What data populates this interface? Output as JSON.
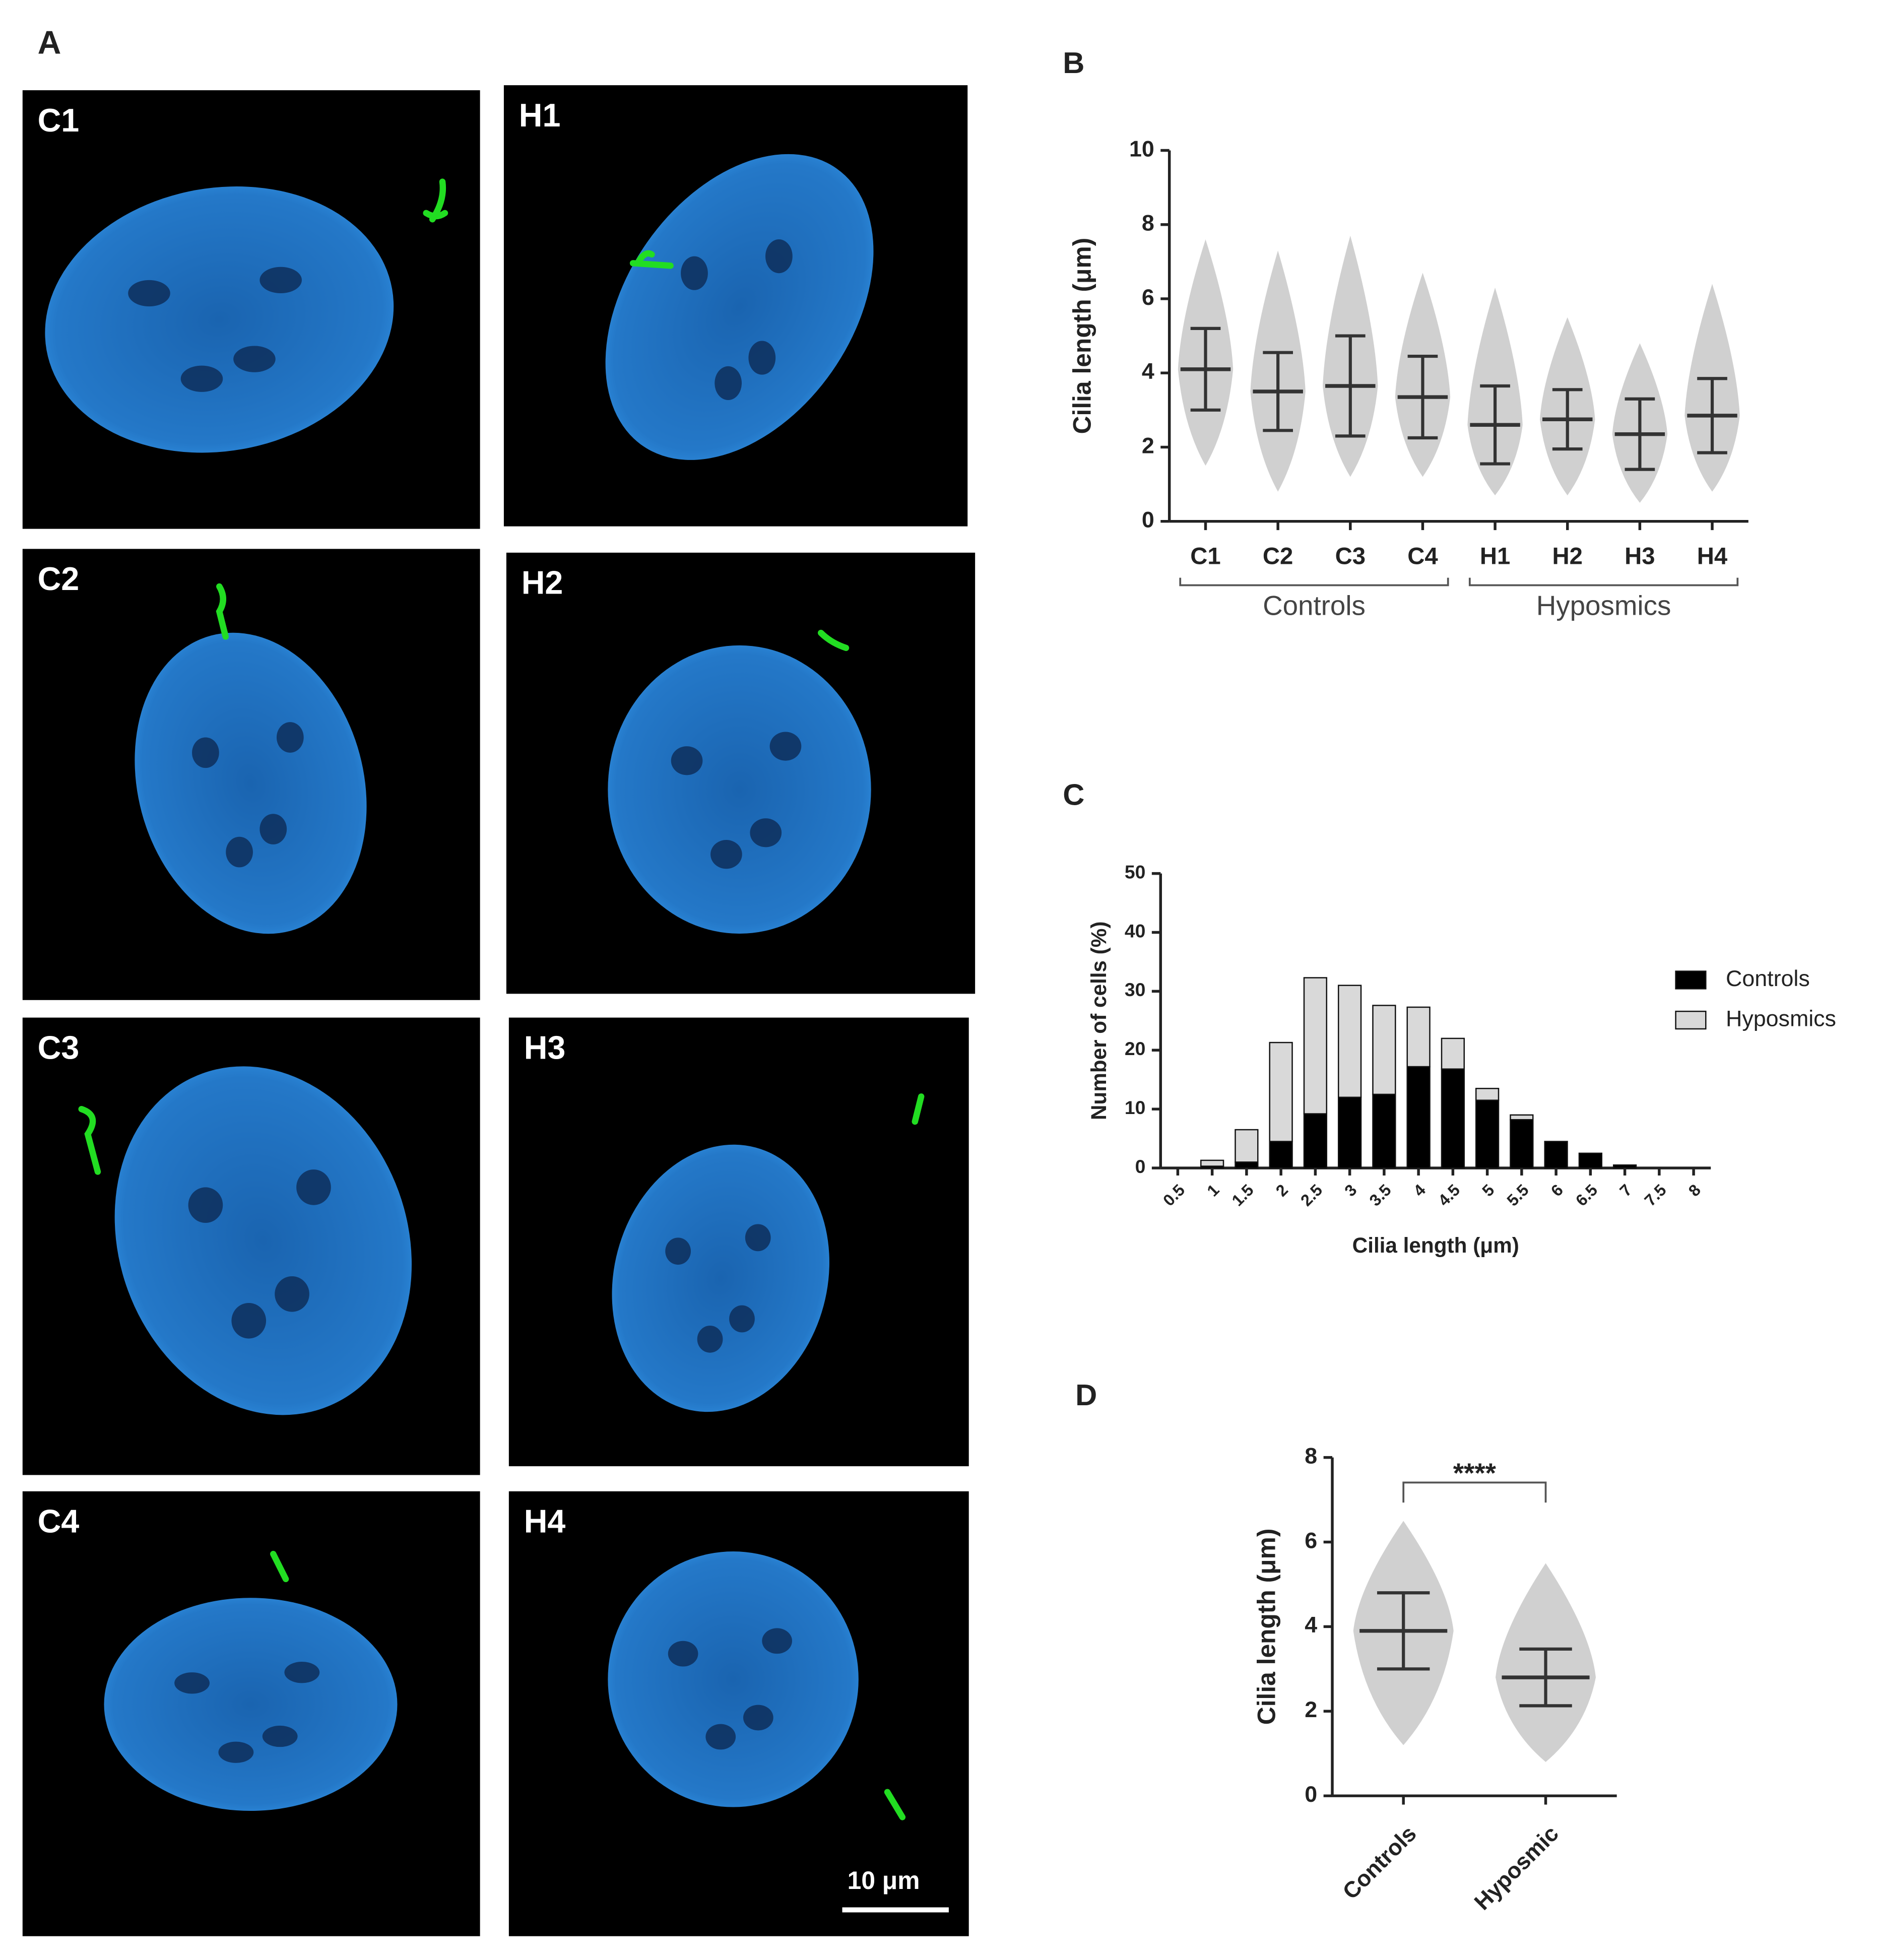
{
  "figure_a": {
    "panel": "A",
    "image_labels": [
      "C1",
      "H1",
      "C2",
      "H2",
      "C3",
      "H3",
      "C4",
      "H4"
    ],
    "scale_bar_label": "10 μm"
  },
  "chart_data": [
    {
      "type": "dot_plot",
      "panel": "B",
      "ylabel": "Cilia length (μm)",
      "categories": [
        "C1",
        "C2",
        "C3",
        "C4",
        "H1",
        "H2",
        "H3",
        "H4"
      ],
      "groups": [
        "Controls",
        "Hyposmics"
      ],
      "mean": [
        4.1,
        3.5,
        3.65,
        3.35,
        2.6,
        2.75,
        2.35,
        2.85
      ],
      "sd": [
        1.1,
        1.05,
        1.35,
        1.1,
        1.05,
        0.8,
        0.95,
        1.0
      ],
      "min": [
        1.5,
        0.8,
        1.2,
        1.2,
        0.7,
        0.7,
        0.5,
        0.8
      ],
      "max": [
        7.6,
        7.3,
        7.7,
        6.7,
        6.3,
        5.5,
        4.8,
        6.4
      ],
      "color": "#c8c8c8",
      "error_color": "#333333",
      "ylim": [
        0,
        10
      ],
      "yticks": [
        0,
        2,
        4,
        6,
        8,
        10
      ]
    },
    {
      "type": "stacked_bar",
      "panel": "C",
      "ylabel": "Number of cells (%)",
      "xlabel": "Cilia length (μm)",
      "categories": [
        "0.5",
        "1",
        "1.5",
        "2",
        "2.5",
        "3",
        "3.5",
        "4",
        "4.5",
        "5",
        "5.5",
        "6",
        "6.5",
        "7",
        "7.5",
        "8"
      ],
      "series": [
        {
          "name": "Controls",
          "color": "#000000",
          "values": [
            0,
            0.3,
            1,
            4.5,
            9.2,
            12,
            12.5,
            17.2,
            16.8,
            11.5,
            8.2,
            4.5,
            2.5,
            0.5,
            0,
            0
          ]
        },
        {
          "name": "Hyposmics",
          "color": "#d9d9d9",
          "values": [
            0,
            1,
            5.5,
            16.8,
            23.1,
            19,
            15.1,
            10.1,
            5.2,
            2,
            0.8,
            0,
            0,
            0,
            0,
            0
          ]
        }
      ],
      "legend": "right",
      "ylim": [
        0,
        50
      ],
      "yticks": [
        0,
        10,
        20,
        30,
        40,
        50
      ]
    },
    {
      "type": "dot_plot",
      "panel": "D",
      "ylabel": "Cilia length (μm)",
      "categories": [
        "Controls",
        "Hyposmic"
      ],
      "mean": [
        3.9,
        2.8
      ],
      "sd": [
        0.9,
        0.67
      ],
      "min": [
        1.2,
        0.8
      ],
      "max": [
        6.5,
        5.5
      ],
      "annotation": "****",
      "color": "#c8c8c8",
      "error_color": "#333333",
      "ylim": [
        0,
        8
      ],
      "yticks": [
        0,
        2,
        4,
        6,
        8
      ]
    }
  ]
}
